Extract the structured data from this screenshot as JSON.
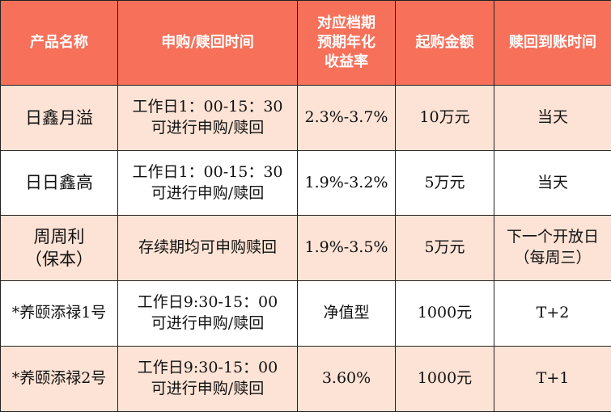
{
  "colors": {
    "header_bg": "#F7705A",
    "header_text": "#FFFFFF",
    "row_alt_bg": "#FDE3D5",
    "row_bg": "#FFFFFF"
  },
  "headers": [
    [
      "产品名称"
    ],
    [
      "申购/赎回时间"
    ],
    [
      "对应档期",
      "预期年化",
      "收益率"
    ],
    [
      "起购金额"
    ],
    [
      "赎回到账时间"
    ]
  ],
  "rows": [
    {
      "name": [
        "日鑫月溢"
      ],
      "time": [
        "工作日1：00-15：30",
        "可进行申购/赎回"
      ],
      "yield": "2.3%-3.7%",
      "min": "10万元",
      "arrival": [
        "当天"
      ]
    },
    {
      "name": [
        "日日鑫高"
      ],
      "time": [
        "工作日1：00-15：30",
        "可进行申购/赎回"
      ],
      "yield": "1.9%-3.2%",
      "min": "5万元",
      "arrival": [
        "当天"
      ]
    },
    {
      "name": [
        "周周利",
        "（保本）"
      ],
      "time": [
        "存续期均可申购赎回"
      ],
      "yield": "1.9%-3.5%",
      "min": "5万元",
      "arrival": [
        "下一个开放日",
        "（每周三）"
      ]
    },
    {
      "name": [
        "*养颐添禄1号"
      ],
      "time": [
        "工作日9:30-15：00",
        "可进行申购/赎回"
      ],
      "yield": "净值型",
      "min": "1000元",
      "arrival": [
        "T+2"
      ]
    },
    {
      "name": [
        "*养颐添禄2号"
      ],
      "time": [
        "工作日9:30-15：00",
        "可进行申购/赎回"
      ],
      "yield": "3.60%",
      "min": "1000元",
      "arrival": [
        "T+1"
      ]
    }
  ]
}
